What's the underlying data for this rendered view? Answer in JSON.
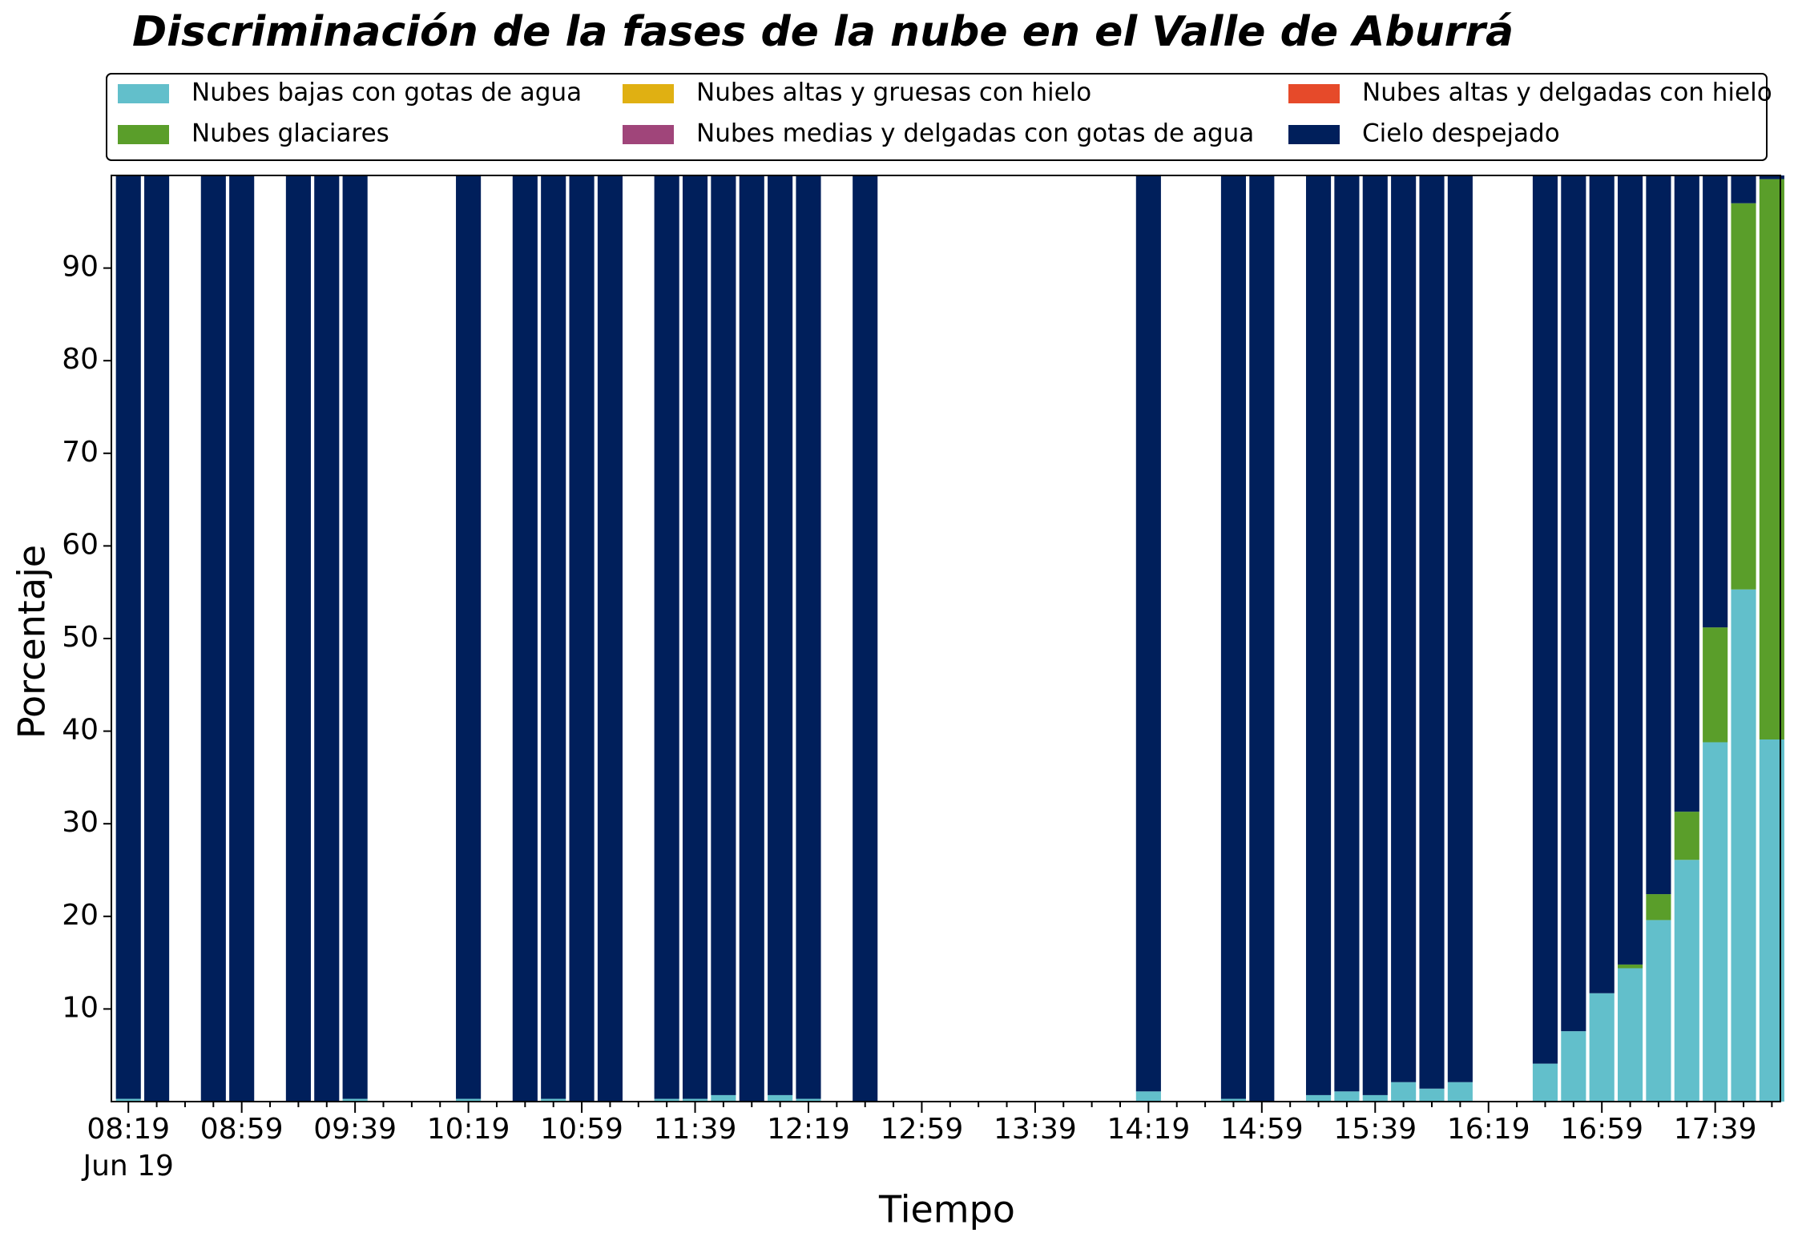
{
  "chart_data": {
    "type": "bar",
    "stacked": true,
    "title": "Discriminación de la fases de la nube en el Valle de Aburrá",
    "xlabel": "Tiempo",
    "ylabel": "Porcentaje",
    "x_date": "Jun 19",
    "categories": [
      "08:19",
      null,
      null,
      null,
      "08:59",
      null,
      null,
      null,
      "09:39",
      null,
      null,
      null,
      "10:19",
      null,
      null,
      null,
      "10:59",
      null,
      null,
      null,
      "11:39",
      null,
      null,
      null,
      "12:19",
      null,
      null,
      null,
      "12:59",
      null,
      null,
      null,
      "13:39",
      null,
      null,
      null,
      "14:19",
      null,
      null,
      null,
      "14:59",
      null,
      null,
      null,
      "15:39",
      null,
      null,
      null,
      "16:19",
      null,
      null,
      null,
      "16:59",
      null,
      null,
      null,
      "17:39",
      null,
      null
    ],
    "ylim": [
      0,
      100
    ],
    "yticks": [
      10,
      20,
      30,
      40,
      50,
      60,
      70,
      80,
      90
    ],
    "series": [
      {
        "name": "Nubes bajas con gotas de agua",
        "color": "#62bfcb",
        "values": [
          0.3,
          0,
          null,
          0,
          0,
          null,
          0,
          0,
          0.3,
          null,
          null,
          null,
          0.3,
          null,
          0,
          0.3,
          0,
          0,
          null,
          0.3,
          0.3,
          0.7,
          0,
          0.7,
          0.3,
          null,
          0,
          null,
          null,
          null,
          null,
          null,
          null,
          null,
          null,
          null,
          1.1,
          null,
          null,
          0.3,
          0,
          null,
          0.7,
          1.1,
          0.7,
          2.1,
          1.4,
          2.1,
          null,
          null,
          4.1,
          7.6,
          11.7,
          14.4,
          19.6,
          26.1,
          38.8,
          55.3,
          39.1
        ]
      },
      {
        "name": "Nubes glaciares",
        "color": "#5a9e2a",
        "values": [
          0,
          0,
          null,
          0,
          0,
          null,
          0,
          0,
          0,
          null,
          null,
          null,
          0,
          null,
          0,
          0,
          0,
          0,
          null,
          0,
          0,
          0,
          0,
          0,
          0,
          null,
          0,
          null,
          null,
          null,
          null,
          null,
          null,
          null,
          null,
          null,
          0,
          null,
          null,
          0,
          0,
          null,
          0,
          0,
          0,
          0,
          0,
          0,
          null,
          null,
          0,
          0,
          0,
          0.4,
          2.8,
          5.2,
          12.4,
          41.7,
          60.5
        ]
      },
      {
        "name": "Nubes altas y gruesas con hielo",
        "color": "#e0b012",
        "values": [
          0,
          0,
          null,
          0,
          0,
          null,
          0,
          0,
          0,
          null,
          null,
          null,
          0,
          null,
          0,
          0,
          0,
          0,
          null,
          0,
          0,
          0,
          0,
          0,
          0,
          null,
          0,
          null,
          null,
          null,
          null,
          null,
          null,
          null,
          null,
          null,
          0,
          null,
          null,
          0,
          0,
          null,
          0,
          0,
          0,
          0,
          0,
          0,
          null,
          null,
          0,
          0,
          0,
          0,
          0,
          0,
          0,
          0,
          0
        ]
      },
      {
        "name": "Nubes medias y delgadas con gotas de agua",
        "color": "#a0457a",
        "values": [
          0,
          0,
          null,
          0,
          0,
          null,
          0,
          0,
          0,
          null,
          null,
          null,
          0,
          null,
          0,
          0,
          0,
          0,
          null,
          0,
          0,
          0,
          0,
          0,
          0,
          null,
          0,
          null,
          null,
          null,
          null,
          null,
          null,
          null,
          null,
          null,
          0,
          null,
          null,
          0,
          0,
          null,
          0,
          0,
          0,
          0,
          0,
          0,
          null,
          null,
          0,
          0,
          0,
          0,
          0,
          0,
          0,
          0,
          0
        ]
      },
      {
        "name": "Nubes altas y delgadas con hielo",
        "color": "#e64a2a",
        "values": [
          0,
          0,
          null,
          0,
          0,
          null,
          0,
          0,
          0,
          null,
          null,
          null,
          0,
          null,
          0,
          0,
          0,
          0,
          null,
          0,
          0,
          0,
          0,
          0,
          0,
          null,
          0,
          null,
          null,
          null,
          null,
          null,
          null,
          null,
          null,
          null,
          0,
          null,
          null,
          0,
          0,
          null,
          0,
          0,
          0,
          0,
          0,
          0,
          null,
          null,
          0,
          0,
          0,
          0,
          0,
          0,
          0,
          0,
          0
        ]
      },
      {
        "name": "Cielo despejado",
        "color": "#001f5b",
        "values": [
          99.7,
          100,
          null,
          100,
          100,
          null,
          100,
          100,
          99.7,
          null,
          null,
          null,
          99.7,
          null,
          100,
          99.7,
          100,
          100,
          null,
          99.7,
          99.7,
          99.3,
          100,
          99.3,
          99.7,
          null,
          100,
          null,
          null,
          null,
          null,
          null,
          null,
          null,
          null,
          null,
          98.9,
          null,
          null,
          99.7,
          100,
          null,
          99.3,
          98.9,
          99.3,
          97.9,
          98.6,
          97.9,
          null,
          null,
          95.9,
          92.4,
          88.3,
          85.2,
          77.6,
          68.7,
          48.8,
          3,
          0.4
        ]
      }
    ]
  }
}
